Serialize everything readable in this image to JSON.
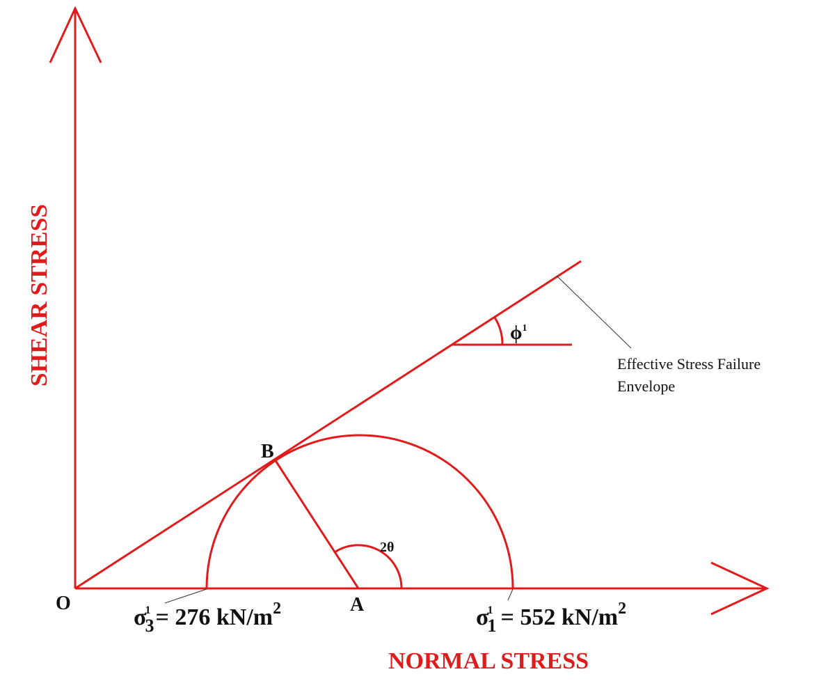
{
  "axes": {
    "x_label": "NORMAL STRESS",
    "y_label": "SHEAR STRESS"
  },
  "points": {
    "origin": "O",
    "center": "A",
    "tangent": "B"
  },
  "angles": {
    "double_theta": "2θ",
    "phi": "ϕ",
    "phi_sup": "1"
  },
  "sigma3": {
    "symbol": "σ",
    "sub": "3",
    "sup": "1",
    "value": "= 276 kN/m",
    "unit_sup": "2"
  },
  "sigma1": {
    "symbol": "σ",
    "sub": "1",
    "sup": "1",
    "value": "= 552 kN/m",
    "unit_sup": "2"
  },
  "envelope": {
    "line1": "Effective Stress Failure",
    "line2": "Envelope"
  },
  "colors": {
    "lines": "#e01b1b",
    "text": "#111111"
  }
}
